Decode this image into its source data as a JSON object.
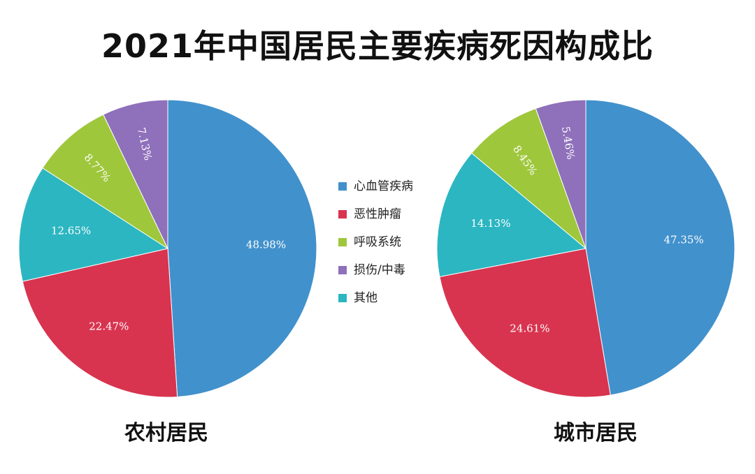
{
  "title": "2021年中国居民主要疾病死因构成比",
  "legend": [
    {
      "name": "心血管疾病",
      "color": "#4191cc"
    },
    {
      "name": "恶性肿瘤",
      "color": "#d8344f"
    },
    {
      "name": "呼吸系统",
      "color": "#9fc73c"
    },
    {
      "name": "损伤/中毒",
      "color": "#8f70bb"
    },
    {
      "name": "其他",
      "color": "#2cb6c1"
    }
  ],
  "chart_data": [
    {
      "type": "pie",
      "title": "农村居民",
      "slices": [
        {
          "name": "心血管疾病",
          "value": 48.98,
          "label": "48.98%",
          "color": "#4191cc"
        },
        {
          "name": "恶性肿瘤",
          "value": 22.47,
          "label": "22.47%",
          "color": "#d8344f"
        },
        {
          "name": "其他",
          "value": 12.65,
          "label": "12.65%",
          "color": "#2cb6c1"
        },
        {
          "name": "呼吸系统",
          "value": 8.77,
          "label": "8.77%",
          "color": "#9fc73c"
        },
        {
          "name": "损伤/中毒",
          "value": 7.13,
          "label": "7.13%",
          "color": "#8f70bb"
        }
      ]
    },
    {
      "type": "pie",
      "title": "城市居民",
      "slices": [
        {
          "name": "心血管疾病",
          "value": 47.35,
          "label": "47.35%",
          "color": "#4191cc"
        },
        {
          "name": "恶性肿瘤",
          "value": 24.61,
          "label": "24.61%",
          "color": "#d8344f"
        },
        {
          "name": "其他",
          "value": 14.13,
          "label": "14.13%",
          "color": "#2cb6c1"
        },
        {
          "name": "呼吸系统",
          "value": 8.45,
          "label": "8.45%",
          "color": "#9fc73c"
        },
        {
          "name": "损伤/中毒",
          "value": 5.46,
          "label": "5.46%",
          "color": "#8f70bb"
        }
      ]
    }
  ]
}
